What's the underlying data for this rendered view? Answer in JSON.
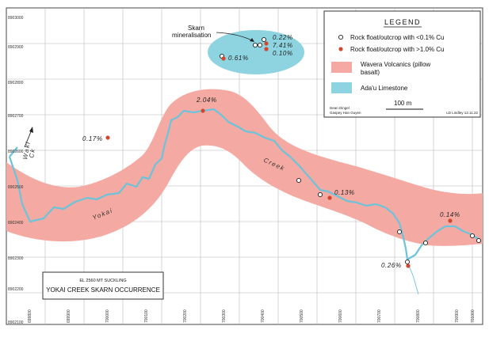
{
  "legend": {
    "title": "LEGEND",
    "items": [
      {
        "symbol": "hollow-circle",
        "label": "Rock float/outcrop with <0.1% Cu"
      },
      {
        "symbol": "red-dot",
        "label": "Rock float/outcrop with >1.0% Cu",
        "color": "#d0482d"
      },
      {
        "symbol": "pink-band",
        "label_line1": "Wavera Volcanics (pillow",
        "label_line2": "basalt)",
        "color": "#f4aaa3"
      },
      {
        "symbol": "blue-band",
        "label": "Ada'u Limestone",
        "color": "#8dd3e0"
      }
    ],
    "scale_label": "100 m",
    "credits_line1": "Dean Dingel",
    "credits_line2": "Gaspey Han Guyen",
    "credits_right": "LD Lindley 12.11.22"
  },
  "title_box": {
    "line1": "EL 2560 MT SUCKLING",
    "line2": "YOKAI CREEK SKARN OCCURRENCE"
  },
  "annotations": {
    "skarn_line1": "Skarn",
    "skarn_line2": "mineralisation",
    "waki_line1": "Waki",
    "waki_line2": "Ck",
    "yokai": "Yokai",
    "creek": "Creek"
  },
  "northings": [
    "8903000",
    "8902900",
    "8902800",
    "8902700",
    "8902600",
    "8902500",
    "8902400",
    "8902300",
    "8902200",
    "8902100"
  ],
  "eastings": [
    "699800",
    "699900",
    "700000",
    "700100",
    "700200",
    "700300",
    "700400",
    "700500",
    "700600",
    "700700",
    "700800",
    "700900",
    "701000"
  ],
  "samples": [
    {
      "label": "0.22%"
    },
    {
      "label": "7.41%"
    },
    {
      "label": "0.10%"
    },
    {
      "label": "0.61%"
    },
    {
      "label": "2.04%"
    },
    {
      "label": "0.17%"
    },
    {
      "label": "0.13%"
    },
    {
      "label": "0.14%"
    },
    {
      "label": "0.26%"
    }
  ],
  "colors": {
    "volcanics": "#f4aaa3",
    "limestone": "#8dd3e0",
    "creek": "#6cc3da",
    "high_cu": "#d0482d",
    "grid": "#b7b7b7"
  }
}
